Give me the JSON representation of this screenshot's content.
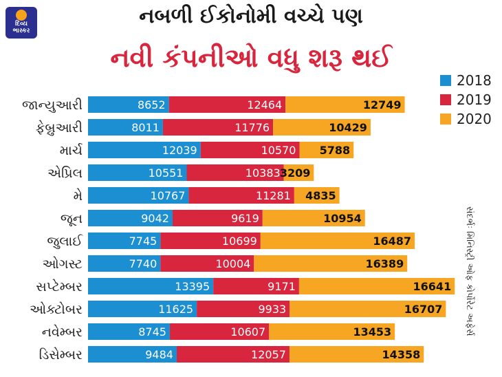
{
  "logo": {
    "text": "દિવ્ય\nભાસ્કર"
  },
  "title": {
    "line1": "નબળી ઈકોનોમી વચ્ચે પણ",
    "line2": "નવી કંપનીઓ વધુ શરૂ થઈ"
  },
  "source": "સંદર્ભઃ મિનિસ્ટ્રી ઓફ કોર્પોરેટ અફેર્સ",
  "colors": {
    "s2018": "#1b8fd2",
    "s2019": "#d7263d",
    "s2020": "#f6a623"
  },
  "chart_data": {
    "type": "bar",
    "orientation": "horizontal",
    "stacked": true,
    "categories": [
      "જાન્યુઆરી",
      "ફેબ્રુઆરી",
      "માર્ચ",
      "એપ્રિલ",
      "મે",
      "જૂન",
      "જુલાઈ",
      "ઓગસ્ટ",
      "સપ્ટેમ્બર",
      "ઓક્ટોબર",
      "નવેમ્બર",
      "ડિસેમ્બર"
    ],
    "series": [
      {
        "name": "2018",
        "color": "#1b8fd2",
        "values": [
          8652,
          8011,
          12039,
          10551,
          10767,
          9042,
          7745,
          7740,
          13395,
          11625,
          8745,
          9484
        ]
      },
      {
        "name": "2019",
        "color": "#d7263d",
        "values": [
          12464,
          11776,
          10570,
          10383,
          11281,
          9619,
          10699,
          10004,
          9171,
          9933,
          10607,
          12057
        ]
      },
      {
        "name": "2020",
        "color": "#f6a623",
        "values": [
          12749,
          10429,
          5788,
          3209,
          4835,
          10954,
          16487,
          16389,
          16641,
          16707,
          13453,
          14358
        ]
      }
    ],
    "legend": "right",
    "grid": false
  }
}
